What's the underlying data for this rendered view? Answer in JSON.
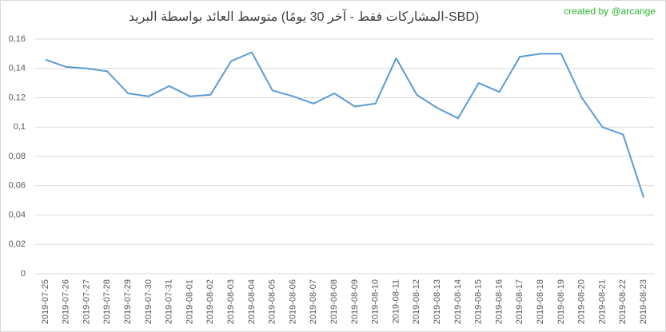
{
  "chart_data": {
    "type": "line",
    "title": "متوسط العائد بواسطة البريد (المشاركات فقط - آخر 30 يومًا-SBD)",
    "annotation": "created by @arcange",
    "categories": [
      "2019-07-25",
      "2019-07-26",
      "2019-07-27",
      "2019-07-28",
      "2019-07-29",
      "2019-07-30",
      "2019-07-31",
      "2019-08-01",
      "2019-08-02",
      "2019-08-03",
      "2019-08-04",
      "2019-08-05",
      "2019-08-06",
      "2019-08-07",
      "2019-08-08",
      "2019-08-09",
      "2019-08-10",
      "2019-08-11",
      "2019-08-12",
      "2019-08-13",
      "2019-08-14",
      "2019-08-15",
      "2019-08-16",
      "2019-08-17",
      "2019-08-18",
      "2019-08-19",
      "2019-08-20",
      "2019-08-21",
      "2019-08-22",
      "2019-08-23"
    ],
    "values": [
      0.146,
      0.141,
      0.14,
      0.138,
      0.123,
      0.121,
      0.128,
      0.121,
      0.122,
      0.145,
      0.151,
      0.125,
      0.121,
      0.116,
      0.123,
      0.114,
      0.116,
      0.147,
      0.122,
      0.113,
      0.106,
      0.13,
      0.124,
      0.148,
      0.15,
      0.15,
      0.12,
      0.1,
      0.095,
      0.052
    ],
    "color": "#5b9bd5",
    "ylim": [
      0,
      0.16
    ],
    "yticks": [
      0,
      {
        "value": 0.02,
        "label": "0,02"
      },
      {
        "value": 0.04,
        "label": "0,04"
      },
      {
        "value": 0.06,
        "label": "0,06"
      },
      {
        "value": 0.08,
        "label": "0,08"
      },
      {
        "value": 0.1,
        "label": "0,1"
      },
      {
        "value": 0.12,
        "label": "0,12"
      },
      {
        "value": 0.14,
        "label": "0,14"
      },
      {
        "value": 0.16,
        "label": "0,16"
      }
    ],
    "grid": true
  }
}
